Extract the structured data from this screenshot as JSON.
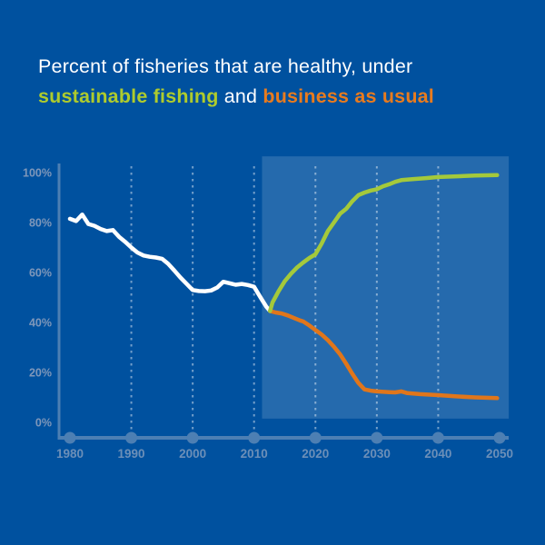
{
  "title": {
    "line1": "Percent of fisheries that are healthy, under",
    "line2_sustainable": "sustainable fishing",
    "line2_and": " and ",
    "line2_bau": "business as usual"
  },
  "colors": {
    "background": "#00519F",
    "title_text": "#FFFFFF",
    "sustainable_text": "#AECB2D",
    "bau_text": "#E87B1E",
    "historical_line": "#FFFFFF",
    "sustainable_line": "#A4C93B",
    "bau_line": "#E0761B",
    "projection_region": "rgba(255,255,255,0.145)",
    "axis": "#4D7FB3",
    "axis_dot": "#4D7FB3",
    "gridline": "rgba(255,255,255,0.45)",
    "x_tick_label": "#6C8FB8",
    "y_tick_label": "#7E97BA"
  },
  "chart_data": {
    "type": "line",
    "title": "Percent of fisheries that are healthy, under sustainable fishing and business as usual",
    "xlabel": "",
    "ylabel": "",
    "xlim": [
      1978,
      2052
    ],
    "ylim": [
      0,
      100
    ],
    "legend_position": "in-title",
    "grid": "vertical dotted lines at decades 1990-2040",
    "x_ticks": [
      1980,
      1990,
      2000,
      2010,
      2020,
      2030,
      2040,
      2050
    ],
    "y_ticks": [
      {
        "label": "0%",
        "value": 0
      },
      {
        "label": "20%",
        "value": 20
      },
      {
        "label": "40%",
        "value": 40
      },
      {
        "label": "60%",
        "value": 60
      },
      {
        "label": "80%",
        "value": 80
      },
      {
        "label": "100%",
        "value": 100
      }
    ],
    "projection_region": {
      "year_start": 2011.3,
      "year_end": 2051.5,
      "pct_bottom": 1.5,
      "pct_top": 106.5
    },
    "series": [
      {
        "name": "historical",
        "color_key": "historical_line",
        "points": [
          [
            1980,
            81.5
          ],
          [
            1981,
            80.6
          ],
          [
            1982,
            83.2
          ],
          [
            1983,
            79.4
          ],
          [
            1984,
            78.7
          ],
          [
            1985,
            77.4
          ],
          [
            1986,
            76.6
          ],
          [
            1987,
            77.0
          ],
          [
            1988,
            74.3
          ],
          [
            1989,
            72.3
          ],
          [
            1990,
            70.0
          ],
          [
            1991,
            68.0
          ],
          [
            1992,
            66.8
          ],
          [
            1993,
            66.3
          ],
          [
            1994,
            66.0
          ],
          [
            1995,
            65.5
          ],
          [
            1996,
            63.5
          ],
          [
            1997,
            60.8
          ],
          [
            1998,
            58.0
          ],
          [
            1999,
            55.5
          ],
          [
            2000,
            53.0
          ],
          [
            2001,
            52.6
          ],
          [
            2002,
            52.5
          ],
          [
            2003,
            52.8
          ],
          [
            2004,
            54.0
          ],
          [
            2005,
            56.3
          ],
          [
            2006,
            55.7
          ],
          [
            2007,
            55.1
          ],
          [
            2008,
            55.4
          ],
          [
            2009,
            55.0
          ],
          [
            2010,
            54.3
          ],
          [
            2011,
            50.2
          ],
          [
            2012,
            46.3
          ],
          [
            2012.6,
            44.6
          ]
        ]
      },
      {
        "name": "business as usual",
        "color_key": "bau_line",
        "points": [
          [
            2012.6,
            44.6
          ],
          [
            2013.5,
            44.0
          ],
          [
            2014.5,
            43.6
          ],
          [
            2015.5,
            42.8
          ],
          [
            2016.5,
            41.8
          ],
          [
            2017.5,
            40.8
          ],
          [
            2018,
            40.4
          ],
          [
            2019,
            38.8
          ],
          [
            2020,
            37.0
          ],
          [
            2021,
            35.2
          ],
          [
            2022,
            33.0
          ],
          [
            2023,
            30.3
          ],
          [
            2024,
            27.3
          ],
          [
            2025,
            23.5
          ],
          [
            2026,
            19.5
          ],
          [
            2027,
            15.8
          ],
          [
            2028,
            13.2
          ],
          [
            2029,
            12.7
          ],
          [
            2030,
            12.4
          ],
          [
            2032,
            12.1
          ],
          [
            2033,
            12.0
          ],
          [
            2034,
            12.4
          ],
          [
            2035,
            11.7
          ],
          [
            2037,
            11.3
          ],
          [
            2040,
            10.9
          ],
          [
            2043,
            10.4
          ],
          [
            2046,
            10.0
          ],
          [
            2049.6,
            9.7
          ]
        ]
      },
      {
        "name": "sustainable fishing",
        "color_key": "sustainable_line",
        "points": [
          [
            2012.6,
            44.6
          ],
          [
            2013,
            48.0
          ],
          [
            2014,
            52.5
          ],
          [
            2015,
            56.5
          ],
          [
            2016,
            59.5
          ],
          [
            2017,
            62.0
          ],
          [
            2018,
            64.0
          ],
          [
            2019,
            65.8
          ],
          [
            2020,
            67.3
          ],
          [
            2021,
            71.5
          ],
          [
            2022,
            76.5
          ],
          [
            2023,
            80.0
          ],
          [
            2024,
            83.5
          ],
          [
            2025,
            85.5
          ],
          [
            2026,
            88.5
          ],
          [
            2027,
            91.0
          ],
          [
            2028,
            92.0
          ],
          [
            2029,
            92.8
          ],
          [
            2030,
            93.3
          ],
          [
            2031,
            94.5
          ],
          [
            2032,
            95.3
          ],
          [
            2033,
            96.3
          ],
          [
            2034,
            97.0
          ],
          [
            2036,
            97.4
          ],
          [
            2038,
            97.8
          ],
          [
            2040,
            98.2
          ],
          [
            2043,
            98.5
          ],
          [
            2046,
            98.8
          ],
          [
            2049.6,
            99.0
          ]
        ]
      }
    ]
  }
}
